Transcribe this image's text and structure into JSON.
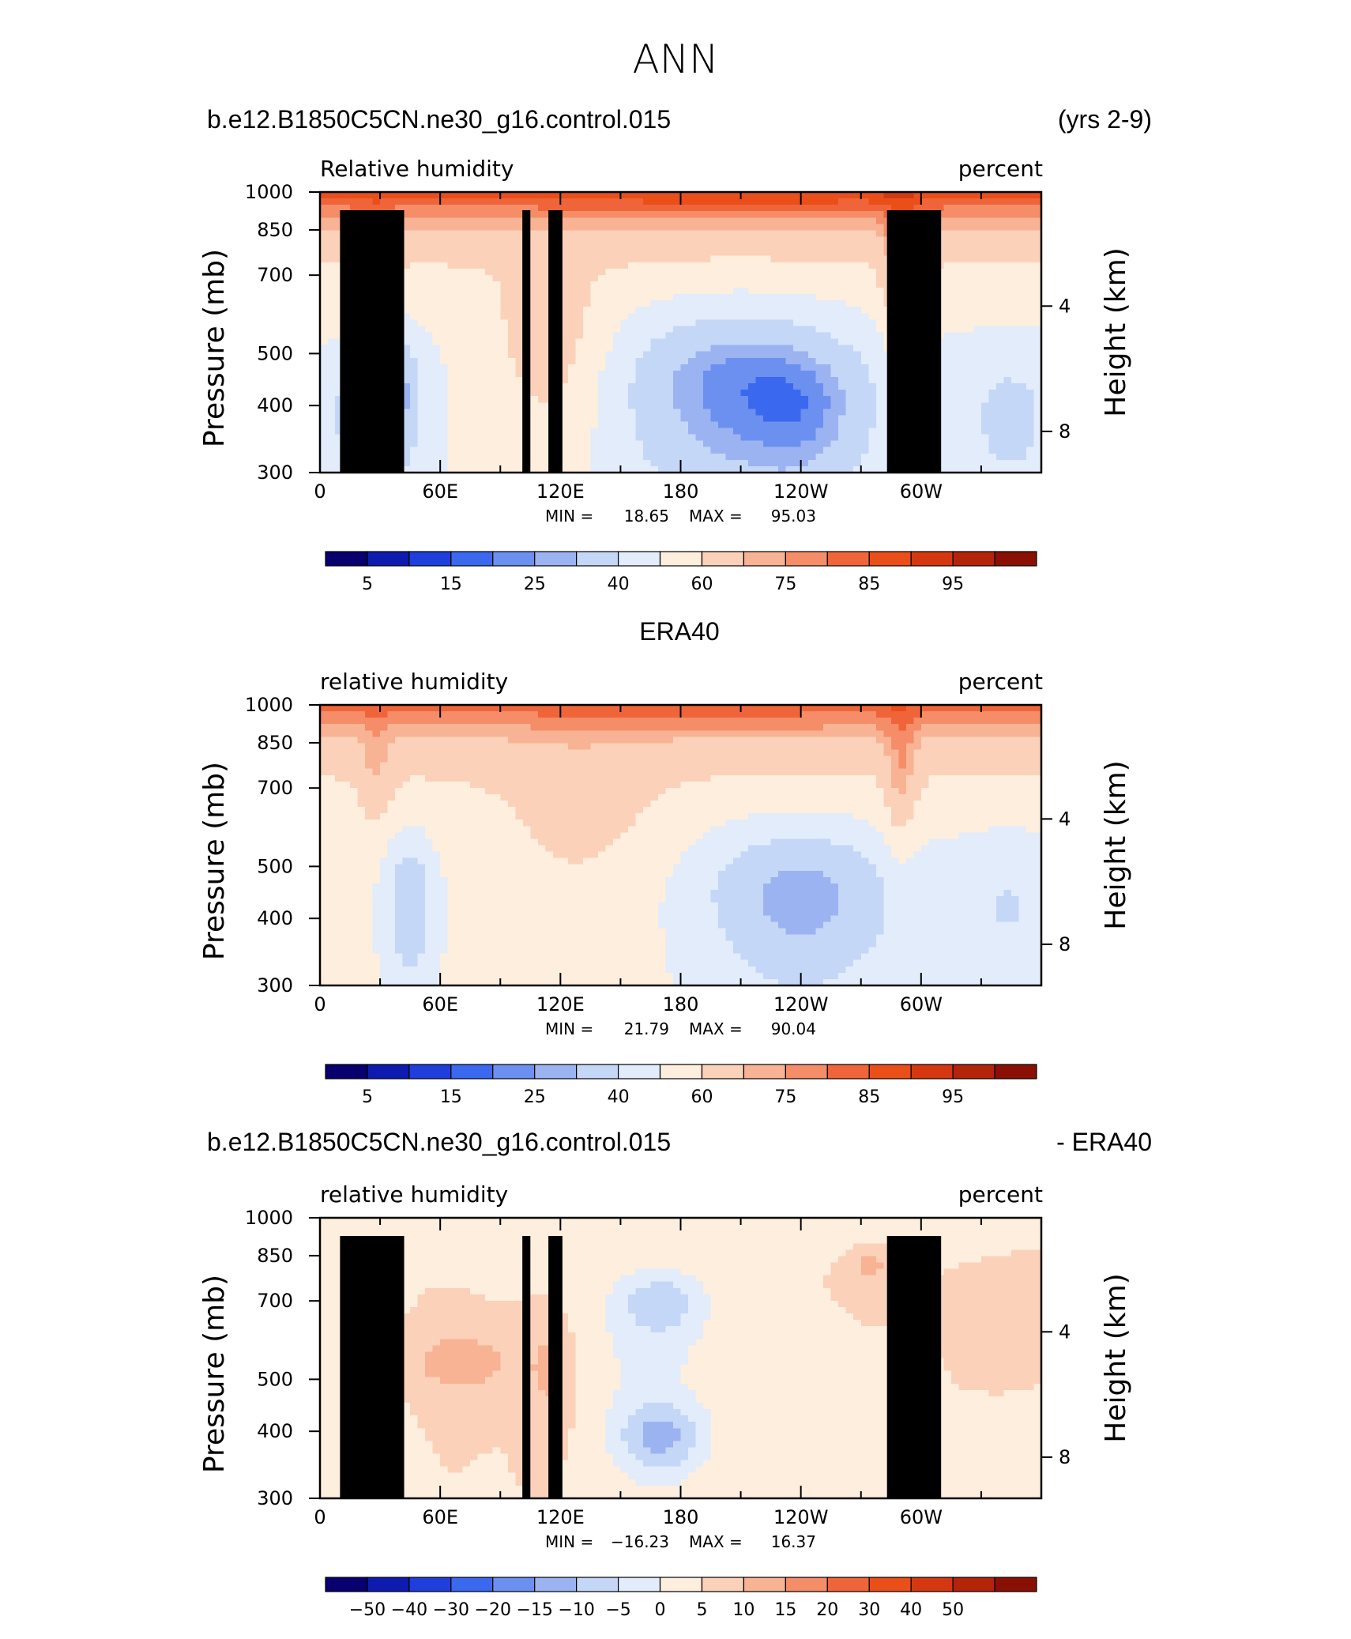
{
  "figure": {
    "title": "ANN",
    "case_name": "b.e12.B1850C5CN.ne30_g16.control.015",
    "years": "(yrs 2-9)",
    "obs_name": "ERA40",
    "diff_suffix": "- ERA40"
  },
  "colors": {
    "abs_palette": [
      "#08006e",
      "#0e1bb0",
      "#1e3fdc",
      "#3a68ee",
      "#6b90f0",
      "#9cb3f2",
      "#c5d7f6",
      "#e2ecfa",
      "#fdeede",
      "#fbd2b9",
      "#f8b394",
      "#f48d68",
      "#ef6539",
      "#ea4e19",
      "#d53811",
      "#b42408",
      "#8a1005"
    ],
    "diff_palette": [
      "#08006e",
      "#0e1bb0",
      "#1e3fdc",
      "#3a68ee",
      "#6b90f0",
      "#9cb3f2",
      "#c5d7f6",
      "#e2ecfa",
      "#fdeede",
      "#fbd2b9",
      "#f8b394",
      "#f48d68",
      "#ef6539",
      "#ea4e19",
      "#d53811",
      "#b42408",
      "#8a1005"
    ],
    "terrain": "#000000"
  },
  "chart_data": [
    {
      "type": "heatmap",
      "subtitle_left": "Relative humidity",
      "units": "percent",
      "ylabel": "Pressure (mb)",
      "ylabel_right": "Height (km)",
      "x_ticks": [
        "0",
        "60E",
        "120E",
        "180",
        "120W",
        "60W"
      ],
      "x_range": [
        0,
        360
      ],
      "y_ticks": [
        "300",
        "400",
        "500",
        "700",
        "850",
        "1000"
      ],
      "y_range_mb": [
        1000,
        300
      ],
      "y_scale": "log",
      "right_ticks": [
        "8",
        "4"
      ],
      "stats": {
        "min_label": "MIN =",
        "min": "18.65",
        "max_label": "MAX =",
        "max": "95.03"
      },
      "colorbar_labels": [
        "5",
        "15",
        "25",
        "40",
        "60",
        "75",
        "85",
        "95"
      ],
      "terrain": true
    },
    {
      "type": "heatmap",
      "title": "ERA40",
      "subtitle_left": "relative humidity",
      "units": "percent",
      "ylabel": "Pressure (mb)",
      "ylabel_right": "Height (km)",
      "x_ticks": [
        "0",
        "60E",
        "120E",
        "180",
        "120W",
        "60W"
      ],
      "x_range": [
        0,
        360
      ],
      "y_ticks": [
        "300",
        "400",
        "500",
        "700",
        "850",
        "1000"
      ],
      "y_range_mb": [
        1000,
        300
      ],
      "y_scale": "log",
      "right_ticks": [
        "8",
        "4"
      ],
      "stats": {
        "min_label": "MIN =",
        "min": "21.79",
        "max_label": "MAX =",
        "max": "90.04"
      },
      "colorbar_labels": [
        "5",
        "15",
        "25",
        "40",
        "60",
        "75",
        "85",
        "95"
      ],
      "terrain": false
    },
    {
      "type": "heatmap",
      "subtitle_left": "relative humidity",
      "units": "percent",
      "ylabel": "Pressure (mb)",
      "ylabel_right": "Height (km)",
      "x_ticks": [
        "0",
        "60E",
        "120E",
        "180",
        "120W",
        "60W"
      ],
      "x_range": [
        0,
        360
      ],
      "y_ticks": [
        "300",
        "400",
        "500",
        "700",
        "850",
        "1000"
      ],
      "y_range_mb": [
        1000,
        300
      ],
      "y_scale": "log",
      "right_ticks": [
        "8",
        "4"
      ],
      "stats": {
        "min_label": "MIN =",
        "min": "−16.23",
        "max_label": "MAX =",
        "max": "16.37"
      },
      "colorbar_labels": [
        "−50",
        "−40",
        "−30",
        "−20",
        "−15",
        "−10",
        "−5",
        "0",
        "5",
        "10",
        "15",
        "20",
        "30",
        "40",
        "50"
      ],
      "terrain": true
    }
  ]
}
